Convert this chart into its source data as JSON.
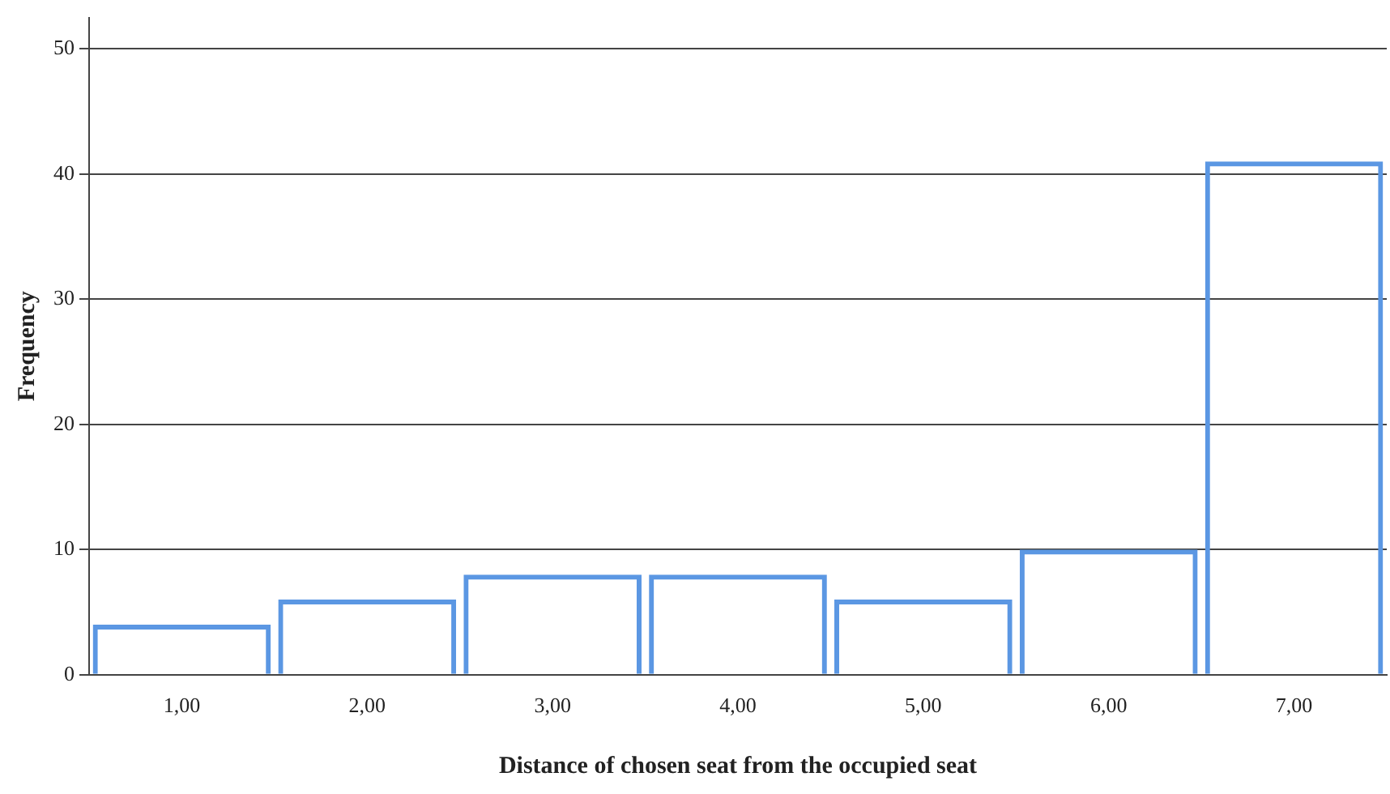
{
  "chart_data": {
    "type": "bar",
    "xlabel": "Distance of chosen seat from the occupied seat",
    "ylabel": "Frequency",
    "categories": [
      "1,00",
      "2,00",
      "3,00",
      "4,00",
      "5,00",
      "6,00",
      "7,00"
    ],
    "values": [
      4,
      6,
      8,
      8,
      6,
      10,
      41
    ],
    "color": "#5b97e3",
    "ylim": [
      0,
      52.5
    ],
    "yticks": [
      0,
      10,
      20,
      30,
      40,
      50
    ],
    "grid": "y"
  }
}
